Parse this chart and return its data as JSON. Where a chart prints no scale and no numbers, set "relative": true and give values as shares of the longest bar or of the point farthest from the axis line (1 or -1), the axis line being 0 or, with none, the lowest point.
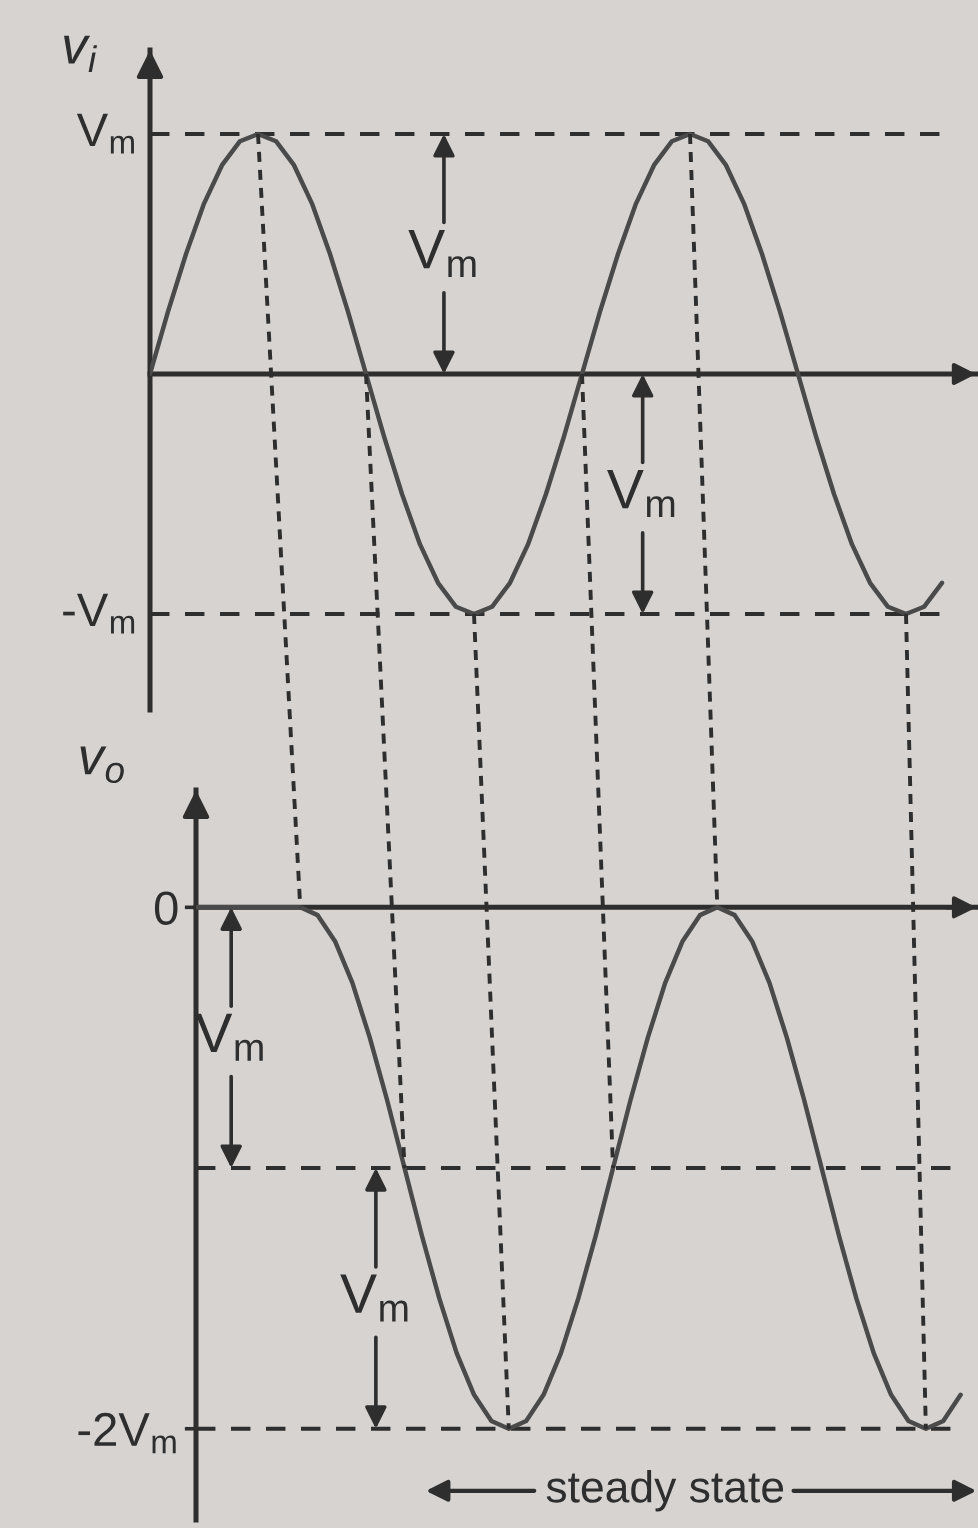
{
  "chart_data": [
    {
      "type": "line",
      "ylabel": "v$_{i}$",
      "tick_labels": "y",
      "relative": true,
      "categories": [
        null,
        null,
        null,
        null,
        null,
        null,
        null,
        null,
        null,
        null,
        null,
        null,
        null,
        null,
        null,
        null,
        null,
        null,
        null,
        null,
        null,
        null,
        null,
        null,
        null,
        null,
        null,
        null,
        null,
        null,
        null,
        null,
        null,
        null,
        null,
        null,
        null,
        null,
        null,
        null,
        null,
        null,
        null,
        null,
        null
      ],
      "series": [
        {
          "color": "#4a4a4a",
          "values": [
            0,
            0.26,
            0.5,
            0.71,
            0.87,
            0.97,
            1,
            0.97,
            0.87,
            0.71,
            0.5,
            0.26,
            0,
            -0.26,
            -0.5,
            -0.71,
            -0.87,
            -0.97,
            -1,
            -0.97,
            -0.87,
            -0.71,
            -0.5,
            -0.26,
            0,
            0.26,
            0.5,
            0.71,
            0.87,
            0.97,
            1,
            0.97,
            0.87,
            0.71,
            0.5,
            0.26,
            0,
            -0.26,
            -0.5,
            -0.71,
            -0.87,
            -0.97,
            -1,
            -0.97,
            -0.87
          ]
        }
      ],
      "ref_lines": [
        {
          "axis": "y",
          "value": 1,
          "label": "V$_{m}$",
          "line_style": "dashed"
        },
        {
          "axis": "y",
          "value": -1,
          "label": "-V$_{m}$",
          "line_style": "dashed"
        }
      ],
      "annotations": [
        "V$_{m}$",
        "V$_{m}$"
      ]
    },
    {
      "type": "line",
      "ylabel": "v$_{o}$",
      "tick_labels": "y",
      "categories": [
        null,
        null,
        null,
        null,
        null,
        null,
        null,
        null,
        null,
        null,
        null,
        null,
        null,
        null,
        null,
        null,
        null,
        null,
        null,
        null,
        null,
        null,
        null,
        null,
        null,
        null,
        null,
        null,
        null,
        null,
        null,
        null,
        null,
        null,
        null,
        null,
        null,
        null,
        null,
        null,
        null,
        null,
        null,
        null,
        null
      ],
      "series": [
        {
          "color": "#4a4a4a",
          "values": [
            0,
            0,
            0,
            0,
            0,
            0,
            0,
            -0.03,
            -0.13,
            -0.29,
            -0.5,
            -0.74,
            -1,
            -1.26,
            -1.5,
            -1.71,
            -1.87,
            -1.97,
            -2,
            -1.97,
            -1.87,
            -1.71,
            -1.5,
            -1.26,
            -1,
            -0.74,
            -0.5,
            -0.29,
            -0.13,
            -0.03,
            0,
            -0.03,
            -0.13,
            -0.29,
            -0.5,
            -0.74,
            -1,
            -1.26,
            -1.5,
            -1.71,
            -1.87,
            -1.97,
            -2,
            -1.97,
            -1.87
          ]
        }
      ],
      "ylim": [
        -2.35,
        0.45
      ],
      "yticks": [
        0,
        {
          "value": -2,
          "label": "-2V$_{m}$"
        }
      ],
      "ref_lines": [
        {
          "axis": "y",
          "value": -1,
          "line_style": "dashed"
        },
        {
          "axis": "y",
          "value": -2,
          "line_style": "dashed"
        }
      ],
      "annotations": [
        "V$_{m}$",
        "V$_{m}$",
        "steady state"
      ]
    }
  ]
}
